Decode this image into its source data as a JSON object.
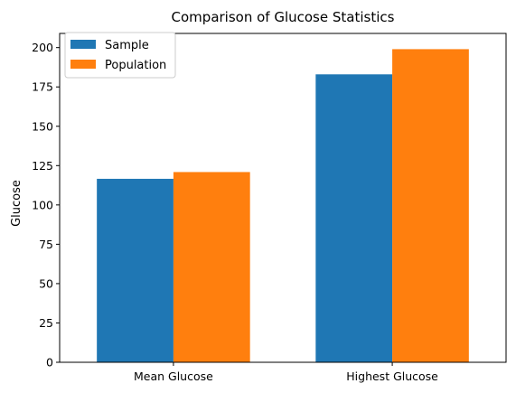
{
  "chart_data": {
    "type": "bar",
    "title": "Comparison of Glucose Statistics",
    "xlabel": "",
    "ylabel": "Glucose",
    "categories": [
      "Mean Glucose",
      "Highest Glucose"
    ],
    "series": [
      {
        "name": "Sample",
        "values": [
          116.6,
          183.0
        ],
        "color": "#1f77b4"
      },
      {
        "name": "Population",
        "values": [
          120.9,
          199.0
        ],
        "color": "#ff7f0e"
      }
    ],
    "ylim": [
      0,
      209
    ],
    "yticks": [
      "0",
      "25",
      "50",
      "75",
      "100",
      "125",
      "150",
      "175",
      "200"
    ],
    "grid": false,
    "legend_position": "top-left"
  }
}
